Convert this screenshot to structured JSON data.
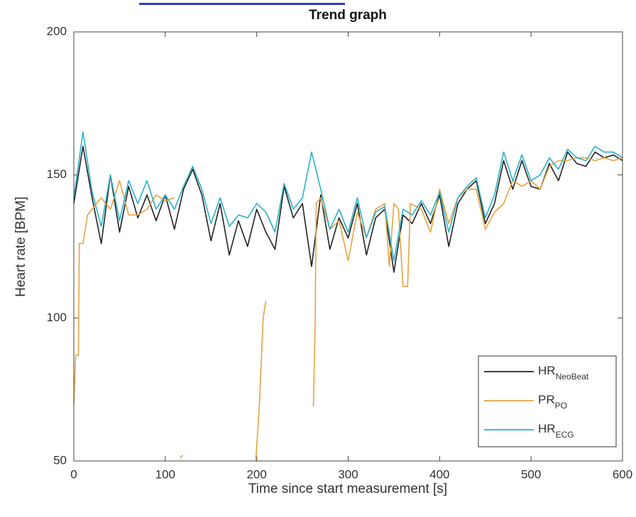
{
  "chart_data": {
    "type": "line",
    "title": "Trend graph",
    "xlabel": "Time since start measurement [s]",
    "ylabel": "Heart rate [BPM]",
    "xlim": [
      0,
      600
    ],
    "xticks": [
      0,
      100,
      200,
      300,
      400,
      500,
      600
    ],
    "ylim": [
      50,
      200
    ],
    "yticks": [
      50,
      100,
      150,
      200
    ],
    "grid": false,
    "legend": "lower right",
    "series": [
      {
        "name": "HR",
        "subscript": "NeoBeat",
        "color": "#222222",
        "x": [
          0,
          10,
          20,
          30,
          40,
          50,
          60,
          70,
          80,
          90,
          100,
          110,
          120,
          130,
          140,
          150,
          160,
          170,
          180,
          190,
          200,
          210,
          220,
          230,
          240,
          250,
          260,
          270,
          280,
          290,
          300,
          310,
          320,
          330,
          340,
          350,
          360,
          370,
          380,
          390,
          400,
          410,
          420,
          430,
          440,
          450,
          460,
          470,
          480,
          490,
          500,
          510,
          520,
          530,
          540,
          550,
          560,
          570,
          580,
          590,
          600
        ],
        "values": [
          140,
          160,
          142,
          126,
          150,
          130,
          146,
          135,
          143,
          134,
          143,
          131,
          145,
          152,
          143,
          127,
          140,
          122,
          134,
          125,
          138,
          130,
          124,
          146,
          135,
          140,
          118,
          143,
          124,
          135,
          128,
          140,
          122,
          135,
          138,
          116,
          136,
          133,
          140,
          133,
          143,
          125,
          140,
          145,
          148,
          133,
          140,
          155,
          145,
          155,
          146,
          145,
          154,
          148,
          158,
          154,
          153,
          158,
          156,
          157,
          155
        ]
      },
      {
        "name": "PR",
        "subscript": "PO",
        "color": "#e8a33d",
        "x": [
          0,
          2,
          5,
          6,
          10,
          15,
          25,
          30,
          40,
          50,
          60,
          70,
          80,
          90,
          100,
          110,
          null,
          116,
          119,
          null,
          199,
          203,
          207,
          210,
          null,
          262,
          264,
          265,
          270,
          280,
          290,
          300,
          310,
          320,
          330,
          340,
          345,
          350,
          355,
          360,
          365,
          368,
          380,
          390,
          400,
          410,
          420,
          430,
          440,
          450,
          460,
          470,
          480,
          490,
          500,
          510,
          520,
          530,
          540,
          550,
          560,
          570,
          580,
          590,
          600
        ],
        "values": [
          70,
          87,
          87,
          126,
          126,
          136,
          140,
          142,
          138,
          148,
          136,
          136,
          138,
          143,
          141,
          142,
          null,
          51,
          52,
          null,
          50,
          70,
          100,
          106,
          null,
          69,
          100,
          140,
          142,
          131,
          134,
          120,
          137,
          128,
          138,
          140,
          118,
          140,
          138,
          111,
          111,
          140,
          138,
          130,
          145,
          133,
          142,
          145,
          145,
          131,
          137,
          140,
          148,
          146,
          148,
          145,
          153,
          155,
          155,
          156,
          156,
          155,
          156,
          155,
          156
        ]
      },
      {
        "name": "HR",
        "subscript": "ECG",
        "color": "#2ab0c8",
        "x": [
          0,
          10,
          20,
          30,
          40,
          50,
          60,
          70,
          80,
          90,
          100,
          110,
          120,
          130,
          140,
          150,
          160,
          170,
          180,
          190,
          200,
          210,
          220,
          230,
          240,
          250,
          260,
          270,
          280,
          290,
          300,
          310,
          320,
          330,
          340,
          350,
          360,
          370,
          380,
          390,
          400,
          410,
          420,
          430,
          440,
          450,
          460,
          470,
          480,
          490,
          500,
          510,
          520,
          530,
          540,
          550,
          560,
          570,
          580,
          590,
          600
        ],
        "values": [
          142,
          165,
          144,
          132,
          150,
          134,
          148,
          140,
          148,
          138,
          143,
          138,
          146,
          153,
          145,
          133,
          142,
          132,
          136,
          135,
          140,
          137,
          130,
          147,
          138,
          142,
          158,
          145,
          131,
          138,
          130,
          142,
          128,
          137,
          139,
          120,
          138,
          136,
          141,
          136,
          144,
          130,
          142,
          146,
          149,
          135,
          143,
          158,
          148,
          157,
          148,
          150,
          156,
          152,
          159,
          156,
          155,
          160,
          158,
          158,
          156
        ]
      }
    ]
  }
}
